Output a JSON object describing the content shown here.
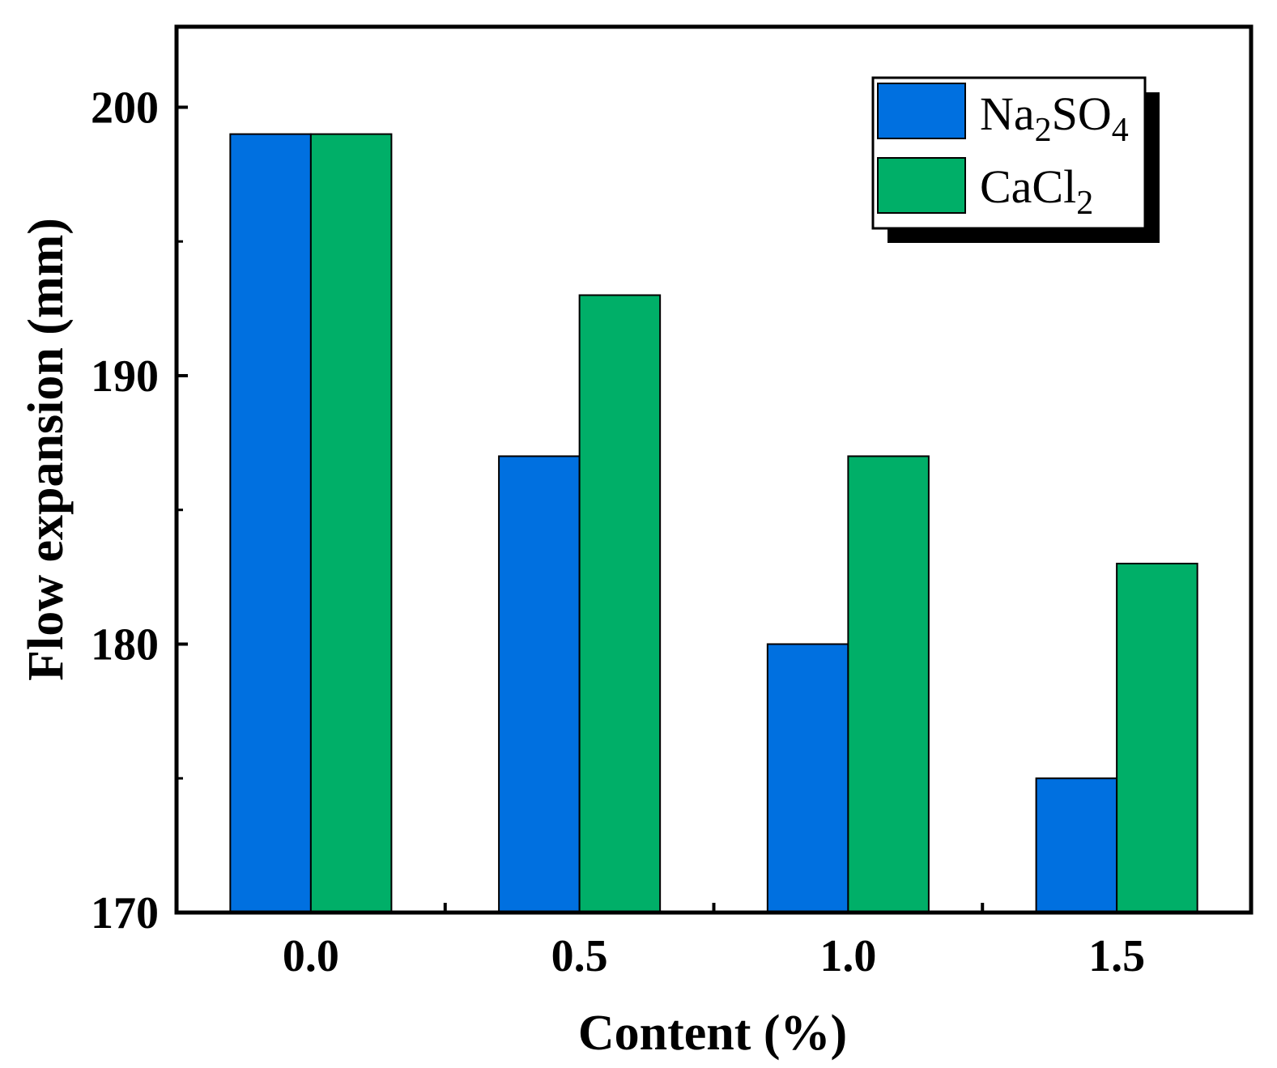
{
  "chart_data": {
    "type": "bar",
    "title": "",
    "xlabel": "Content (%)",
    "ylabel": "Flow expansion (mm)",
    "categories": [
      "0.0",
      "0.5",
      "1.0",
      "1.5"
    ],
    "ylim": [
      170,
      203
    ],
    "yticks": [
      170,
      180,
      190,
      200
    ],
    "yticks_minor": [
      175,
      185,
      195
    ],
    "grid": false,
    "legend_position": "top-right",
    "series": [
      {
        "name": "Na2SO4",
        "label_base": "Na",
        "label_sub1": "2",
        "label_mid": "SO",
        "label_sub2": "4",
        "color": "#0070e0",
        "values": [
          199,
          187,
          180,
          175
        ]
      },
      {
        "name": "CaCl2",
        "label_base": "CaCl",
        "label_sub1": "2",
        "color": "#00af68",
        "values": [
          199,
          193,
          187,
          183
        ]
      }
    ]
  }
}
